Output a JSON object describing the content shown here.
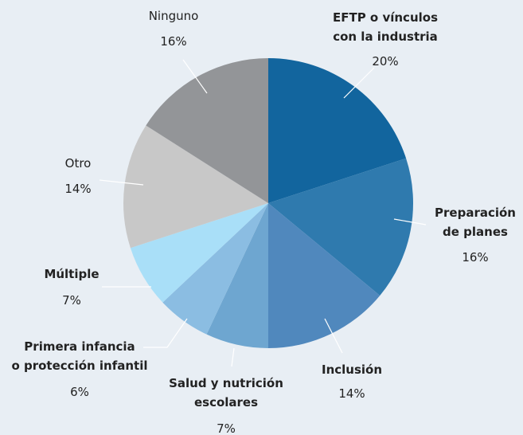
{
  "chart_data": {
    "type": "pie",
    "categories": [
      "EFTP o vínculos\ncon la industria",
      "Preparación\nde planes",
      "Inclusión",
      "Salud y nutrición\nescolares",
      "Primera infancia\no protección infantil",
      "Múltiple",
      "Otro",
      "Ninguno"
    ],
    "values": [
      20,
      16,
      14,
      7,
      6,
      7,
      14,
      16
    ],
    "value_labels": [
      "20%",
      "16%",
      "14%",
      "7%",
      "6%",
      "7%",
      "14%",
      "16%"
    ],
    "colors": [
      "#12659e",
      "#2f7aae",
      "#5088bd",
      "#6ea6d0",
      "#8bbde2",
      "#a9dff8",
      "#c8c8c8",
      "#939598"
    ]
  }
}
